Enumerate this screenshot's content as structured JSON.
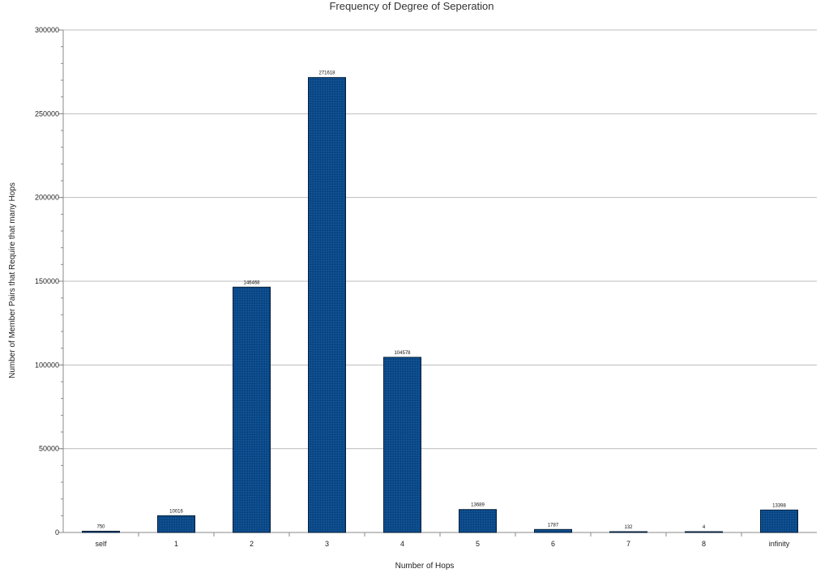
{
  "chart_data": {
    "type": "bar",
    "title": "Frequency of Degree of Seperation",
    "xlabel": "Number of Hops",
    "ylabel": "Number of Member Pairs that Require that many Hops",
    "categories": [
      "self",
      "1",
      "2",
      "3",
      "4",
      "5",
      "6",
      "7",
      "8",
      "infinity"
    ],
    "values": [
      750,
      10016,
      146468,
      271618,
      104578,
      13689,
      1787,
      132,
      4,
      13398
    ],
    "data_labels": [
      "750",
      "10016",
      "146468",
      "271618",
      "104578",
      "13689",
      "1787",
      "132",
      "4",
      "13398"
    ],
    "y_ticks": [
      "0",
      "50000",
      "100000",
      "150000",
      "200000",
      "250000",
      "300000"
    ],
    "ylim": [
      0,
      300000
    ],
    "grid": true,
    "legend": "none",
    "colors": {
      "bar_fill": "#0b4a8a",
      "bar_stroke": "#061f3a",
      "grid": "#bdbdbd",
      "axis": "#8a8a8a"
    }
  }
}
